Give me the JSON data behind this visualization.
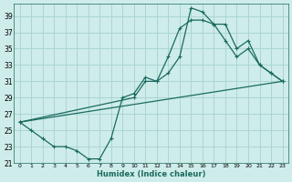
{
  "xlabel": "Humidex (Indice chaleur)",
  "bg_color": "#ceecea",
  "grid_color": "#aad6d2",
  "line_color": "#1a6b5e",
  "xlim": [
    -0.5,
    23.5
  ],
  "ylim": [
    21,
    40.5
  ],
  "xticks": [
    0,
    1,
    2,
    3,
    4,
    5,
    6,
    7,
    8,
    9,
    10,
    11,
    12,
    13,
    14,
    15,
    16,
    17,
    18,
    19,
    20,
    21,
    22,
    23
  ],
  "yticks": [
    21,
    23,
    25,
    27,
    29,
    31,
    33,
    35,
    37,
    39
  ],
  "line1_x": [
    0,
    1,
    2,
    3,
    4,
    5,
    6,
    7,
    8,
    9,
    10,
    11,
    12,
    13,
    14,
    15,
    16,
    17,
    18,
    19,
    20,
    21,
    22,
    23
  ],
  "line1_y": [
    26,
    25,
    24,
    23,
    23,
    22.5,
    21.5,
    21.5,
    24,
    29,
    29.5,
    31.5,
    31,
    34,
    37.5,
    38.5,
    38.5,
    38,
    36,
    34,
    35,
    33,
    32,
    31
  ],
  "line2_x": [
    0,
    10,
    11,
    12,
    13,
    14,
    15,
    16,
    17,
    18,
    19,
    20,
    21,
    22,
    23
  ],
  "line2_y": [
    26,
    29,
    31,
    31,
    32,
    34,
    40,
    39.5,
    38,
    38,
    35,
    36,
    33,
    32,
    31
  ],
  "line3_x": [
    0,
    23
  ],
  "line3_y": [
    26,
    31
  ]
}
